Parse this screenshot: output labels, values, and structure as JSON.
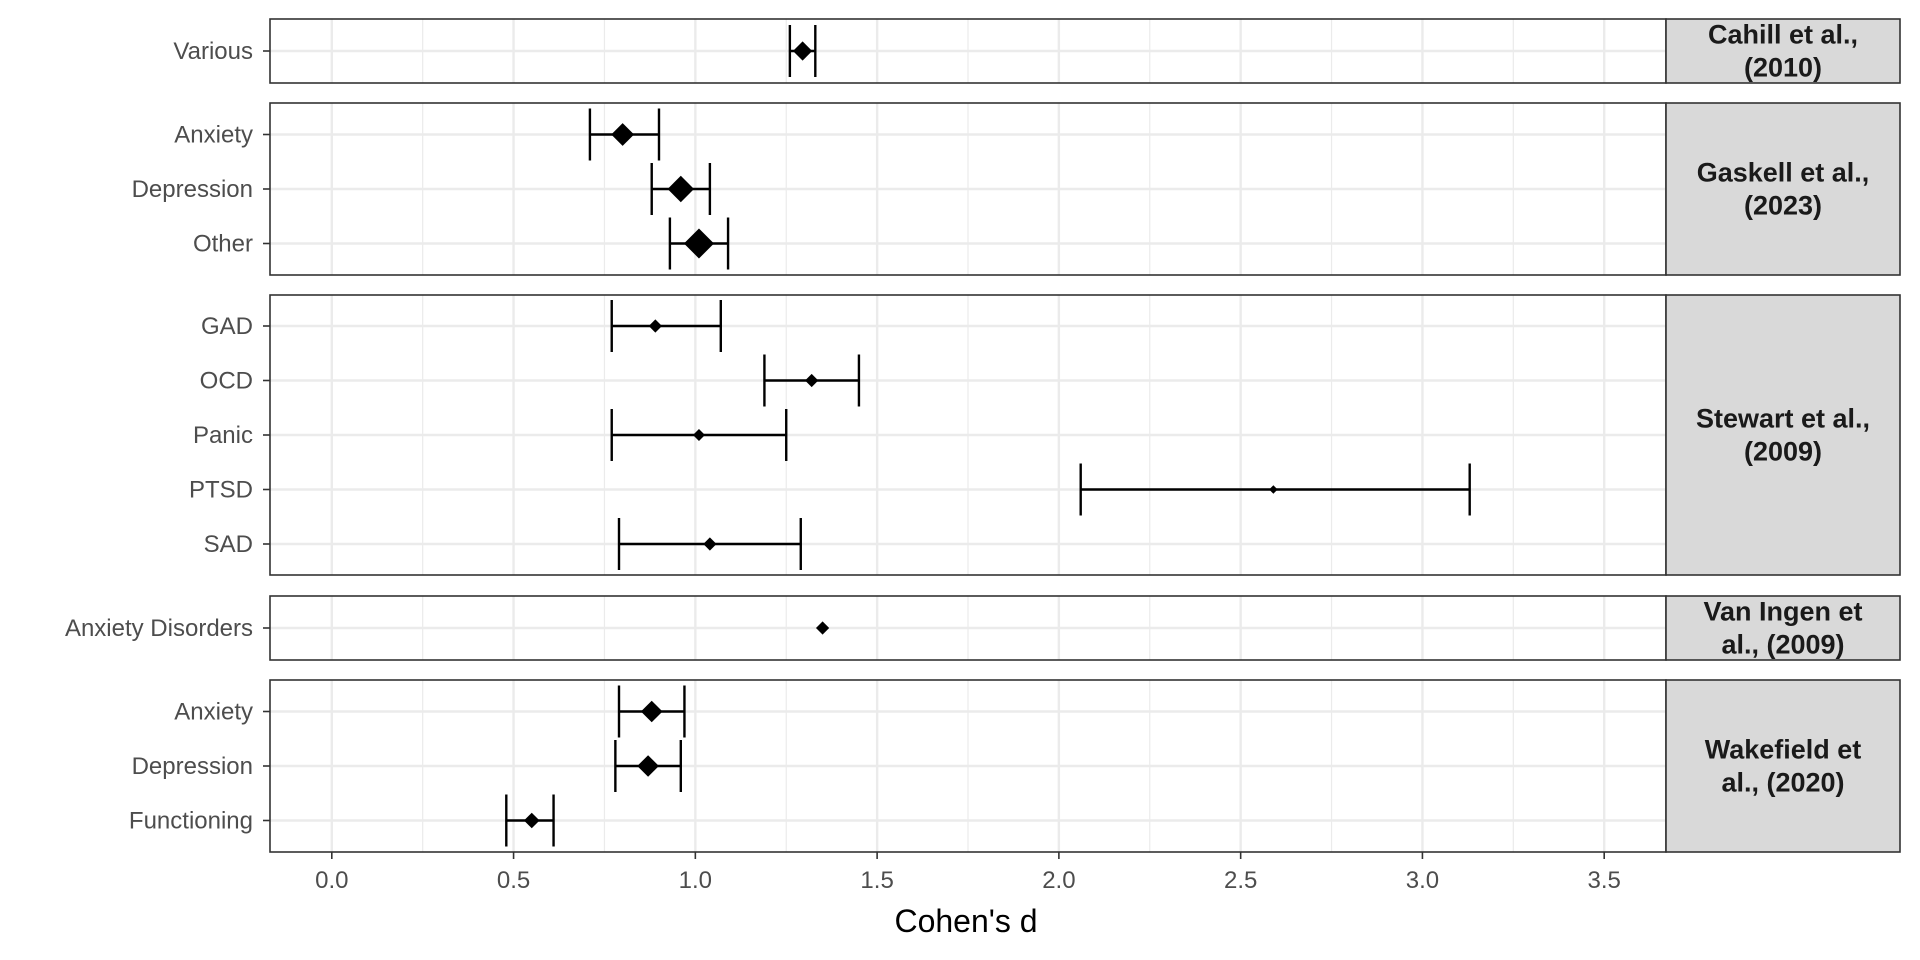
{
  "chart_data": {
    "type": "forest",
    "xlabel": "Cohen's d",
    "xlim": [
      -0.17,
      3.67
    ],
    "xticks": [
      0.0,
      0.5,
      1.0,
      1.5,
      2.0,
      2.5,
      3.0,
      3.5
    ],
    "xtick_labels": [
      "0.0",
      "0.5",
      "1.0",
      "1.5",
      "2.0",
      "2.5",
      "3.0",
      "3.5"
    ],
    "grid": true,
    "colors": {
      "panel_border": "#333333",
      "strip_fill": "#d9d9d9",
      "grid": "#ebebeb",
      "mark": "#000000",
      "label": "#4d4d4d"
    },
    "panels": [
      {
        "strip_lines": [
          "Cahill et al.,",
          "(2010)"
        ],
        "rows": [
          {
            "label": "Various",
            "d": 1.295,
            "lo": 1.26,
            "hi": 1.33,
            "weight": 0.55
          }
        ]
      },
      {
        "strip_lines": [
          "Gaskell et al.,",
          "(2023)"
        ],
        "rows": [
          {
            "label": "Other",
            "d": 1.01,
            "lo": 0.93,
            "hi": 1.09,
            "weight": 1.0
          },
          {
            "label": "Depression",
            "d": 0.96,
            "lo": 0.88,
            "hi": 1.04,
            "weight": 0.85
          },
          {
            "label": "Anxiety",
            "d": 0.8,
            "lo": 0.71,
            "hi": 0.9,
            "weight": 0.7
          }
        ]
      },
      {
        "strip_lines": [
          "Stewart et al.,",
          "(2009)"
        ],
        "rows": [
          {
            "label": "SAD",
            "d": 1.04,
            "lo": 0.79,
            "hi": 1.29,
            "weight": 0.3
          },
          {
            "label": "PTSD",
            "d": 2.59,
            "lo": 2.06,
            "hi": 3.13,
            "weight": 0.1
          },
          {
            "label": "Panic",
            "d": 1.01,
            "lo": 0.77,
            "hi": 1.25,
            "weight": 0.25
          },
          {
            "label": "OCD",
            "d": 1.32,
            "lo": 1.19,
            "hi": 1.45,
            "weight": 0.3
          },
          {
            "label": "GAD",
            "d": 0.89,
            "lo": 0.77,
            "hi": 1.07,
            "weight": 0.3
          }
        ]
      },
      {
        "strip_lines": [
          "Van Ingen et",
          "al., (2009)"
        ],
        "rows": [
          {
            "label": "Anxiety Disorders",
            "d": 1.35,
            "lo": 1.35,
            "hi": 1.35,
            "weight": 0.3
          }
        ]
      },
      {
        "strip_lines": [
          "Wakefield et",
          "al., (2020)"
        ],
        "rows": [
          {
            "label": "Functioning",
            "d": 0.55,
            "lo": 0.48,
            "hi": 0.61,
            "weight": 0.4
          },
          {
            "label": "Depression",
            "d": 0.87,
            "lo": 0.78,
            "hi": 0.96,
            "weight": 0.65
          },
          {
            "label": "Anxiety",
            "d": 0.88,
            "lo": 0.79,
            "hi": 0.97,
            "weight": 0.65
          }
        ]
      }
    ]
  }
}
